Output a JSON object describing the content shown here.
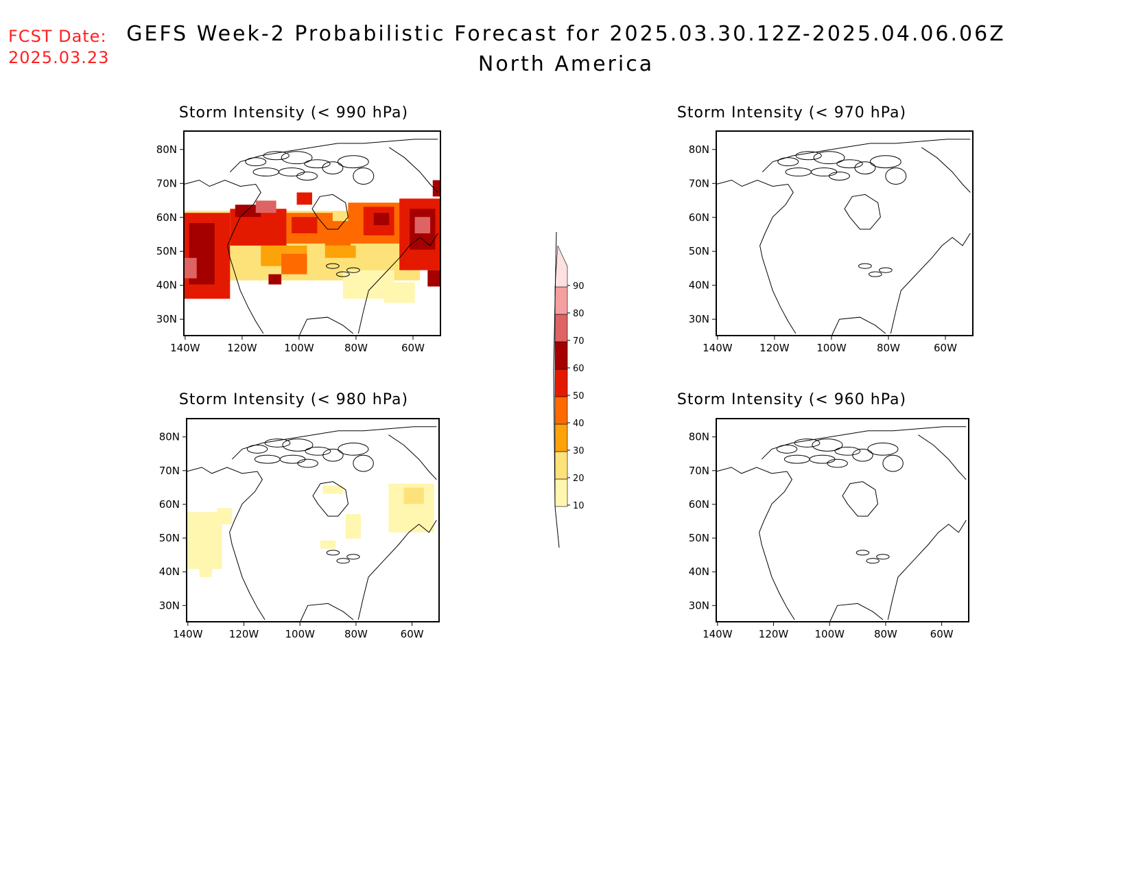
{
  "fcst_date": {
    "label": "FCST Date:",
    "date": "2025.03.23"
  },
  "title": {
    "line1": "GEFS Week-2 Probabilistic Forecast for 2025.03.30.12Z-2025.04.06.06Z",
    "line2": "North America"
  },
  "panels": [
    {
      "id": "p990",
      "title": "Storm Intensity (< 990 hPa)"
    },
    {
      "id": "p970",
      "title": "Storm Intensity (< 970 hPa)"
    },
    {
      "id": "p980",
      "title": "Storm Intensity (< 980 hPa)"
    },
    {
      "id": "p960",
      "title": "Storm Intensity (< 960 hPa)"
    }
  ],
  "axes": {
    "lat_ticks": [
      "80N",
      "70N",
      "60N",
      "50N",
      "40N",
      "30N"
    ],
    "lon_ticks": [
      "140W",
      "120W",
      "100W",
      "80W",
      "60W"
    ]
  },
  "colorbar": {
    "levels": [
      10,
      20,
      30,
      40,
      50,
      60,
      70,
      80,
      90
    ],
    "colors": [
      "#fff6b0",
      "#fde27a",
      "#fca30a",
      "#ff6a00",
      "#e41a00",
      "#a50000",
      "#de6464",
      "#f4a0a0",
      "#fde0e0"
    ]
  },
  "colors": {
    "fcst_date": "#ff2020"
  }
}
